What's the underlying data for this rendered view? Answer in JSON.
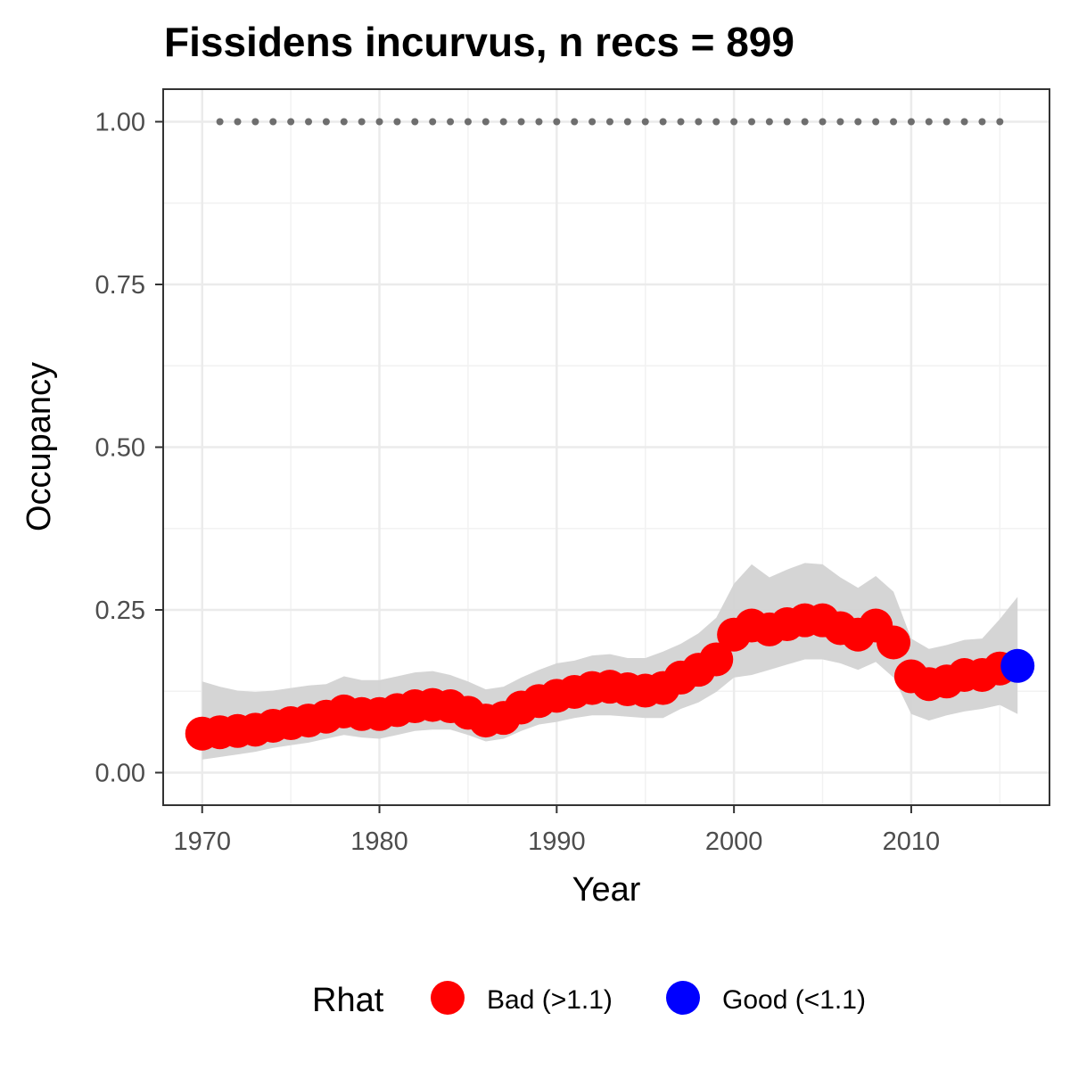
{
  "chart_data": {
    "type": "scatter",
    "title": "Fissidens incurvus, n recs = 899",
    "xlabel": "Year",
    "ylabel": "Occupancy",
    "xlim": [
      1967.8,
      2017.8
    ],
    "ylim": [
      -0.05,
      1.05
    ],
    "x_ticks": [
      1970,
      1980,
      1990,
      2000,
      2010
    ],
    "x_tick_labels": [
      "1970",
      "1980",
      "1990",
      "2000",
      "2010"
    ],
    "y_ticks": [
      0,
      0.25,
      0.5,
      0.75,
      1.0
    ],
    "y_tick_labels": [
      "0.00",
      "0.25",
      "0.50",
      "0.75",
      "1.00"
    ],
    "grid": true,
    "legend_position": "bottom",
    "legend": {
      "title": "Rhat",
      "items": [
        {
          "label": "Bad (>1.1)",
          "color": "#ff0000"
        },
        {
          "label": "Good (<1.1)",
          "color": "#0000ff"
        }
      ]
    },
    "colors": {
      "bad": "#ff0000",
      "good": "#0000ff",
      "ribbon": "#d3d3d3",
      "reference": "#6e6e6e"
    },
    "series": [
      {
        "rhat": [
          "bad",
          "bad",
          "bad",
          "bad",
          "bad",
          "bad",
          "bad",
          "bad",
          "bad",
          "bad",
          "bad",
          "bad",
          "bad",
          "bad",
          "bad",
          "bad",
          "bad",
          "bad",
          "bad",
          "bad",
          "bad",
          "bad",
          "bad",
          "bad",
          "bad",
          "bad",
          "bad",
          "bad",
          "bad",
          "bad",
          "bad",
          "bad",
          "bad",
          "bad",
          "bad",
          "bad",
          "bad",
          "bad",
          "bad",
          "bad",
          "bad",
          "bad",
          "bad",
          "bad",
          "bad",
          "bad",
          "good"
        ],
        "x": [
          1970,
          1971,
          1972,
          1973,
          1974,
          1975,
          1976,
          1977,
          1978,
          1979,
          1980,
          1981,
          1982,
          1983,
          1984,
          1985,
          1986,
          1987,
          1988,
          1989,
          1990,
          1991,
          1992,
          1993,
          1994,
          1995,
          1996,
          1997,
          1998,
          1999,
          2000,
          2001,
          2002,
          2003,
          2004,
          2005,
          2006,
          2007,
          2008,
          2009,
          2010,
          2011,
          2012,
          2013,
          2014,
          2015,
          2016
        ],
        "y": [
          0.06,
          0.062,
          0.064,
          0.066,
          0.072,
          0.076,
          0.08,
          0.086,
          0.094,
          0.09,
          0.09,
          0.096,
          0.102,
          0.104,
          0.102,
          0.092,
          0.08,
          0.084,
          0.1,
          0.11,
          0.118,
          0.124,
          0.13,
          0.132,
          0.128,
          0.126,
          0.13,
          0.146,
          0.158,
          0.174,
          0.212,
          0.226,
          0.22,
          0.228,
          0.234,
          0.234,
          0.222,
          0.212,
          0.226,
          0.2,
          0.148,
          0.136,
          0.14,
          0.15,
          0.15,
          0.16,
          0.164
        ],
        "lower": [
          0.02,
          0.024,
          0.028,
          0.032,
          0.038,
          0.042,
          0.046,
          0.052,
          0.058,
          0.054,
          0.052,
          0.058,
          0.064,
          0.066,
          0.066,
          0.058,
          0.048,
          0.052,
          0.064,
          0.074,
          0.078,
          0.084,
          0.088,
          0.088,
          0.086,
          0.084,
          0.084,
          0.098,
          0.108,
          0.124,
          0.146,
          0.15,
          0.158,
          0.166,
          0.174,
          0.174,
          0.168,
          0.158,
          0.17,
          0.146,
          0.09,
          0.08,
          0.088,
          0.094,
          0.098,
          0.104,
          0.09
        ]
      },
      {
        "x": [
          1970,
          1971,
          1972,
          1973,
          1974,
          1975,
          1976,
          1977,
          1978,
          1979,
          1980,
          1981,
          1982,
          1983,
          1984,
          1985,
          1986,
          1987,
          1988,
          1989,
          1990,
          1991,
          1992,
          1993,
          1994,
          1995,
          1996,
          1997,
          1998,
          1999,
          2000,
          2001,
          2002,
          2003,
          2004,
          2005,
          2006,
          2007,
          2008,
          2009,
          2010,
          2011,
          2012,
          2013,
          2014,
          2015,
          2016
        ],
        "upper": [
          0.14,
          0.132,
          0.126,
          0.124,
          0.126,
          0.13,
          0.134,
          0.136,
          0.148,
          0.142,
          0.142,
          0.148,
          0.154,
          0.156,
          0.15,
          0.14,
          0.128,
          0.132,
          0.146,
          0.158,
          0.168,
          0.172,
          0.18,
          0.182,
          0.176,
          0.176,
          0.186,
          0.198,
          0.214,
          0.238,
          0.29,
          0.32,
          0.3,
          0.312,
          0.322,
          0.32,
          0.3,
          0.284,
          0.302,
          0.278,
          0.206,
          0.19,
          0.196,
          0.204,
          0.206,
          0.236,
          0.27
        ]
      },
      {
        "x": [
          1971,
          1972,
          1973,
          1974,
          1975,
          1976,
          1977,
          1978,
          1979,
          1980,
          1981,
          1982,
          1983,
          1984,
          1985,
          1986,
          1987,
          1988,
          1989,
          1990,
          1991,
          1992,
          1993,
          1994,
          1995,
          1996,
          1997,
          1998,
          1999,
          2000,
          2001,
          2002,
          2003,
          2004,
          2005,
          2006,
          2007,
          2008,
          2009,
          2010,
          2011,
          2012,
          2013,
          2014,
          2015
        ],
        "y": [
          1,
          1,
          1,
          1,
          1,
          1,
          1,
          1,
          1,
          1,
          1,
          1,
          1,
          1,
          1,
          1,
          1,
          1,
          1,
          1,
          1,
          1,
          1,
          1,
          1,
          1,
          1,
          1,
          1,
          1,
          1,
          1,
          1,
          1,
          1,
          1,
          1,
          1,
          1,
          1,
          1,
          1,
          1,
          1,
          1
        ]
      }
    ]
  }
}
